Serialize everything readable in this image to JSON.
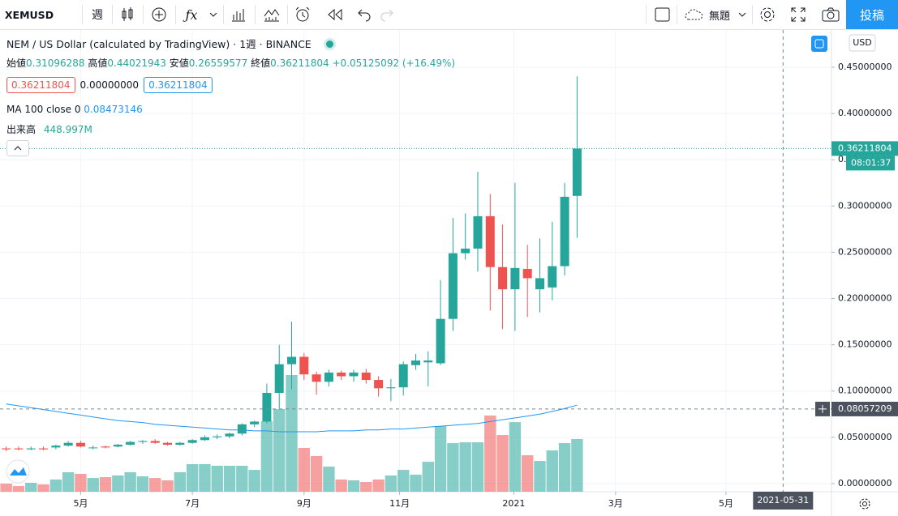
{
  "toolbar": {
    "symbol": "XEMUSD",
    "interval": "週",
    "layout_name": "無題",
    "publish": "投稿"
  },
  "legend": {
    "title": "NEM / US Dollar (calculated by TradingView)",
    "interval": "1週",
    "exchange": "BINANCE",
    "open_label": "始値",
    "high_label": "高値",
    "low_label": "安値",
    "close_label": "終値",
    "change": "+0.05125092 (+16.49%)",
    "order_boxes": [
      "0.36211804",
      "0.00000000",
      "0.36211804"
    ],
    "volume_value": "448.997M"
  },
  "price_axis": {
    "currency": "USD",
    "countdown": "08:01:37"
  },
  "chart_data": {
    "type": "candlestick",
    "up_color": "#26a69a",
    "down_color": "#ef5350",
    "grid": true,
    "candles": [
      {
        "open": 0.038,
        "high": 0.04,
        "low": 0.035,
        "close": 0.037
      },
      {
        "open": 0.038,
        "high": 0.04,
        "low": 0.036,
        "close": 0.037
      },
      {
        "open": 0.037,
        "high": 0.04,
        "low": 0.036,
        "close": 0.038
      },
      {
        "open": 0.038,
        "high": 0.04,
        "low": 0.036,
        "close": 0.037
      },
      {
        "open": 0.039,
        "high": 0.042,
        "low": 0.037,
        "close": 0.041
      },
      {
        "open": 0.041,
        "high": 0.046,
        "low": 0.04,
        "close": 0.044
      },
      {
        "open": 0.044,
        "high": 0.046,
        "low": 0.039,
        "close": 0.04
      },
      {
        "open": 0.039,
        "high": 0.041,
        "low": 0.037,
        "close": 0.039
      },
      {
        "open": 0.04,
        "high": 0.041,
        "low": 0.038,
        "close": 0.039
      },
      {
        "open": 0.04,
        "high": 0.043,
        "low": 0.039,
        "close": 0.042
      },
      {
        "open": 0.042,
        "high": 0.046,
        "low": 0.041,
        "close": 0.045
      },
      {
        "open": 0.045,
        "high": 0.047,
        "low": 0.043,
        "close": 0.046
      },
      {
        "open": 0.046,
        "high": 0.048,
        "low": 0.043,
        "close": 0.044
      },
      {
        "open": 0.044,
        "high": 0.045,
        "low": 0.041,
        "close": 0.042
      },
      {
        "open": 0.042,
        "high": 0.045,
        "low": 0.041,
        "close": 0.044
      },
      {
        "open": 0.044,
        "high": 0.048,
        "low": 0.043,
        "close": 0.047
      },
      {
        "open": 0.047,
        "high": 0.052,
        "low": 0.046,
        "close": 0.05
      },
      {
        "open": 0.05,
        "high": 0.053,
        "low": 0.048,
        "close": 0.051
      },
      {
        "open": 0.051,
        "high": 0.055,
        "low": 0.049,
        "close": 0.054
      },
      {
        "open": 0.054,
        "high": 0.065,
        "low": 0.052,
        "close": 0.064
      },
      {
        "open": 0.064,
        "high": 0.068,
        "low": 0.061,
        "close": 0.067
      },
      {
        "open": 0.067,
        "high": 0.108,
        "low": 0.065,
        "close": 0.098
      },
      {
        "open": 0.098,
        "high": 0.15,
        "low": 0.081,
        "close": 0.129
      },
      {
        "open": 0.129,
        "high": 0.175,
        "low": 0.102,
        "close": 0.137
      },
      {
        "open": 0.137,
        "high": 0.141,
        "low": 0.112,
        "close": 0.118
      },
      {
        "open": 0.118,
        "high": 0.121,
        "low": 0.096,
        "close": 0.11
      },
      {
        "open": 0.11,
        "high": 0.123,
        "low": 0.105,
        "close": 0.12
      },
      {
        "open": 0.12,
        "high": 0.122,
        "low": 0.112,
        "close": 0.116
      },
      {
        "open": 0.116,
        "high": 0.123,
        "low": 0.11,
        "close": 0.12
      },
      {
        "open": 0.12,
        "high": 0.124,
        "low": 0.108,
        "close": 0.112
      },
      {
        "open": 0.112,
        "high": 0.116,
        "low": 0.094,
        "close": 0.103
      },
      {
        "open": 0.103,
        "high": 0.113,
        "low": 0.089,
        "close": 0.104
      },
      {
        "open": 0.104,
        "high": 0.132,
        "low": 0.095,
        "close": 0.129
      },
      {
        "open": 0.128,
        "high": 0.14,
        "low": 0.123,
        "close": 0.133
      },
      {
        "open": 0.131,
        "high": 0.143,
        "low": 0.105,
        "close": 0.133
      },
      {
        "open": 0.13,
        "high": 0.22,
        "low": 0.128,
        "close": 0.178
      },
      {
        "open": 0.178,
        "high": 0.287,
        "low": 0.165,
        "close": 0.249
      },
      {
        "open": 0.249,
        "high": 0.292,
        "low": 0.242,
        "close": 0.254
      },
      {
        "open": 0.254,
        "high": 0.337,
        "low": 0.229,
        "close": 0.289
      },
      {
        "open": 0.289,
        "high": 0.313,
        "low": 0.187,
        "close": 0.234
      },
      {
        "open": 0.234,
        "high": 0.28,
        "low": 0.167,
        "close": 0.21
      },
      {
        "open": 0.21,
        "high": 0.325,
        "low": 0.165,
        "close": 0.233
      },
      {
        "open": 0.232,
        "high": 0.258,
        "low": 0.18,
        "close": 0.222
      },
      {
        "open": 0.21,
        "high": 0.265,
        "low": 0.185,
        "close": 0.222
      },
      {
        "open": 0.212,
        "high": 0.283,
        "low": 0.198,
        "close": 0.235
      },
      {
        "open": 0.235,
        "high": 0.325,
        "low": 0.225,
        "close": 0.31
      },
      {
        "open": 0.31096288,
        "high": 0.44021943,
        "low": 0.26559577,
        "close": 0.36211804
      }
    ],
    "volume": {
      "name": "出来高",
      "values": [
        69,
        48,
        76,
        62,
        104,
        166,
        152,
        117,
        124,
        138,
        166,
        131,
        117,
        97,
        166,
        235,
        235,
        221,
        221,
        221,
        186,
        600,
        704,
        994,
        373,
        304,
        214,
        104,
        97,
        83,
        104,
        138,
        186,
        145,
        255,
        559,
        414,
        421,
        421,
        649,
        483,
        593,
        311,
        262,
        352,
        414,
        448.997
      ]
    },
    "ma": {
      "name": "MA 100 close 0",
      "color": "#2196f3",
      "values": [
        0.086,
        0.084,
        0.082,
        0.08,
        0.078,
        0.076,
        0.074,
        0.072,
        0.07,
        0.068,
        0.067,
        0.066,
        0.064,
        0.063,
        0.062,
        0.061,
        0.06,
        0.059,
        0.058,
        0.058,
        0.057,
        0.057,
        0.056,
        0.056,
        0.056,
        0.056,
        0.057,
        0.057,
        0.057,
        0.058,
        0.058,
        0.059,
        0.059,
        0.06,
        0.061,
        0.062,
        0.063,
        0.064,
        0.065,
        0.067,
        0.069,
        0.071,
        0.073,
        0.075,
        0.078,
        0.081,
        0.08473146
      ]
    },
    "ylim": [
      -0.0088,
      0.4903
    ],
    "yticks": [
      {
        "value": 0,
        "label": "0.00000000"
      },
      {
        "value": 0.05,
        "label": "0.05000000"
      },
      {
        "value": 0.1,
        "label": "0.10000000"
      },
      {
        "value": 0.15,
        "label": "0.15000000"
      },
      {
        "value": 0.2,
        "label": "0.20000000"
      },
      {
        "value": 0.25,
        "label": "0.25000000"
      },
      {
        "value": 0.3,
        "label": "0.30000000"
      },
      {
        "value": 0.35,
        "label": "0.35000000"
      },
      {
        "value": 0.4,
        "label": "0.40000000"
      },
      {
        "value": 0.45,
        "label": "0.45000000"
      }
    ],
    "xlim": [
      -0.5,
      66.5
    ],
    "xticks": [
      {
        "value": 6,
        "label": "5月"
      },
      {
        "value": 15,
        "label": "7月"
      },
      {
        "value": 24,
        "label": "9月"
      },
      {
        "value": 31.7,
        "label": "11月"
      },
      {
        "value": 40.9,
        "label": "2021"
      },
      {
        "value": 49.1,
        "label": "3月"
      },
      {
        "value": 58,
        "label": "5月"
      }
    ],
    "crosshair": {
      "x": 62.6,
      "y": 0.08057209,
      "x_label": "2021-05-31"
    }
  }
}
